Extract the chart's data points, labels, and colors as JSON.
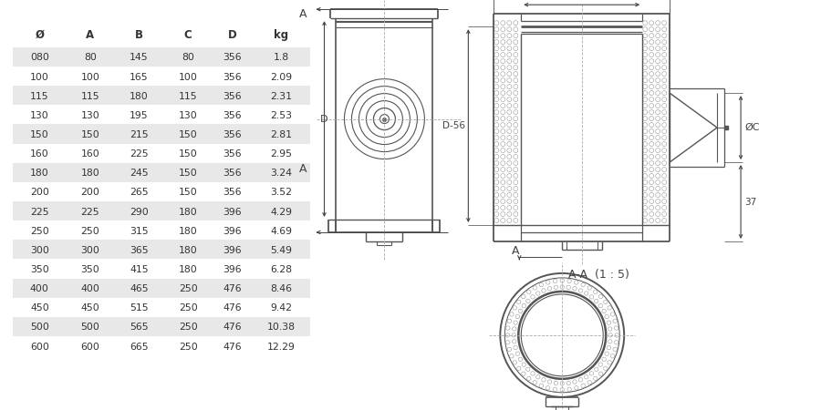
{
  "background_color": "#ffffff",
  "table": {
    "headers": [
      "Ø",
      "A",
      "B",
      "C",
      "D",
      "kg"
    ],
    "rows": [
      [
        "080",
        "80",
        "145",
        "80",
        "356",
        "1.8"
      ],
      [
        "100",
        "100",
        "165",
        "100",
        "356",
        "2.09"
      ],
      [
        "115",
        "115",
        "180",
        "115",
        "356",
        "2.31"
      ],
      [
        "130",
        "130",
        "195",
        "130",
        "356",
        "2.53"
      ],
      [
        "150",
        "150",
        "215",
        "150",
        "356",
        "2.81"
      ],
      [
        "160",
        "160",
        "225",
        "150",
        "356",
        "2.95"
      ],
      [
        "180",
        "180",
        "245",
        "150",
        "356",
        "3.24"
      ],
      [
        "200",
        "200",
        "265",
        "150",
        "356",
        "3.52"
      ],
      [
        "225",
        "225",
        "290",
        "180",
        "396",
        "4.29"
      ],
      [
        "250",
        "250",
        "315",
        "180",
        "396",
        "4.69"
      ],
      [
        "300",
        "300",
        "365",
        "180",
        "396",
        "5.49"
      ],
      [
        "350",
        "350",
        "415",
        "180",
        "396",
        "6.28"
      ],
      [
        "400",
        "400",
        "465",
        "250",
        "476",
        "8.46"
      ],
      [
        "450",
        "450",
        "515",
        "250",
        "476",
        "9.42"
      ],
      [
        "500",
        "500",
        "565",
        "250",
        "476",
        "10.38"
      ],
      [
        "600",
        "600",
        "665",
        "250",
        "476",
        "12.29"
      ]
    ],
    "shaded_rows": [
      0,
      2,
      4,
      6,
      8,
      10,
      12,
      14
    ],
    "shade_color": "#e8e8e8",
    "text_color": "#333333",
    "header_color": "#333333"
  },
  "diagram_color": "#555555",
  "dim_color": "#444444",
  "annotation_color": "#444444",
  "hatch_color": "#aaaaaa"
}
